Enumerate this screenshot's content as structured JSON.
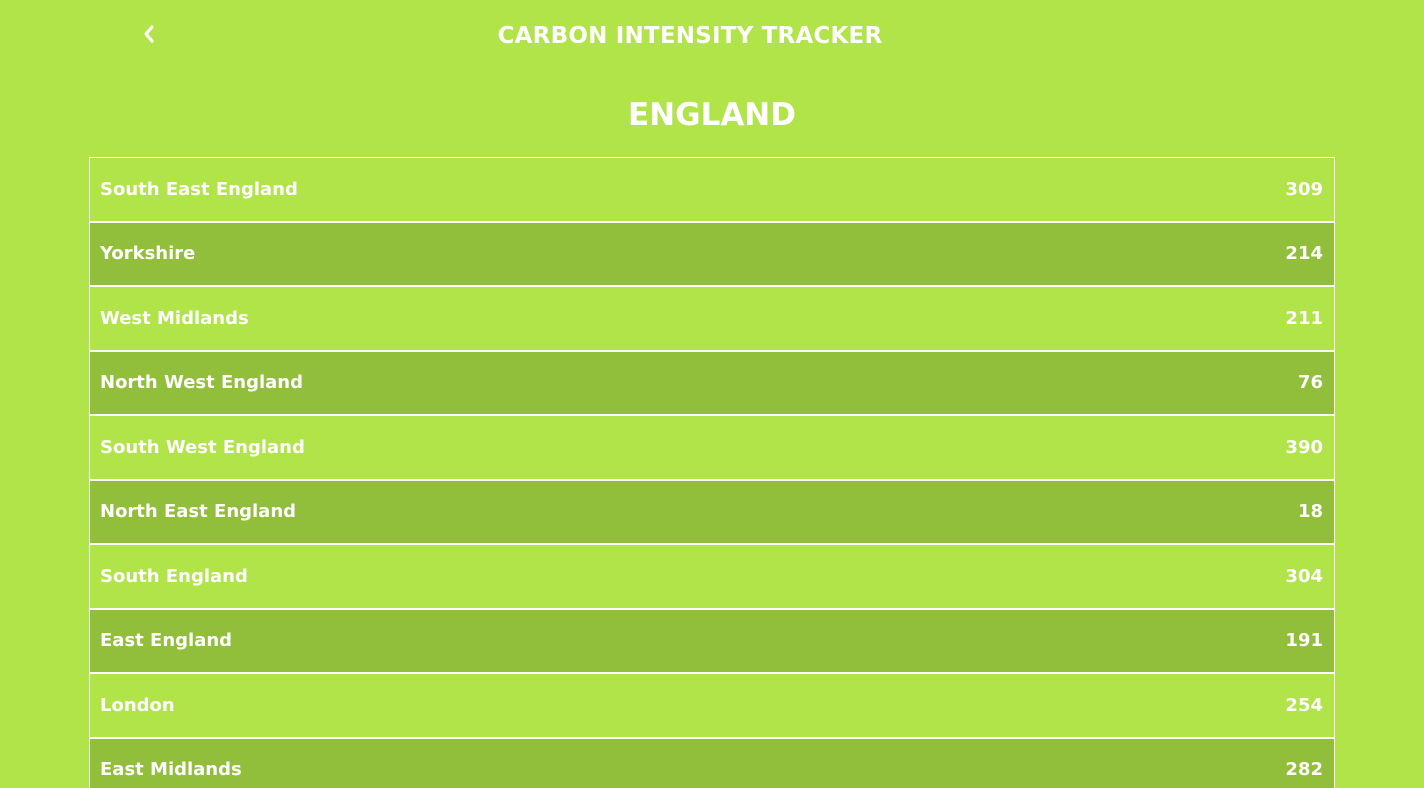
{
  "header": {
    "back_icon": "chevron-left-icon",
    "app_title": "CARBON INTENSITY TRACKER"
  },
  "page": {
    "title": "ENGLAND"
  },
  "colors": {
    "background": "#b0e448",
    "row_alt": "#92bf3b",
    "text": "#ffffff",
    "divider": "#ffffff"
  },
  "regions": [
    {
      "name": "South East England",
      "value": "309"
    },
    {
      "name": "Yorkshire",
      "value": "214"
    },
    {
      "name": "West Midlands",
      "value": "211"
    },
    {
      "name": "North West England",
      "value": "76"
    },
    {
      "name": "South West England",
      "value": "390"
    },
    {
      "name": "North East England",
      "value": "18"
    },
    {
      "name": "South England",
      "value": "304"
    },
    {
      "name": "East England",
      "value": "191"
    },
    {
      "name": "London",
      "value": "254"
    },
    {
      "name": "East Midlands",
      "value": "282"
    }
  ]
}
